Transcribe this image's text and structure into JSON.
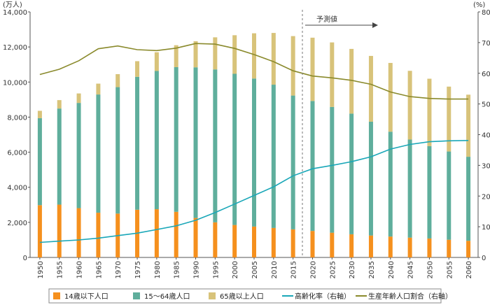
{
  "chart_data": {
    "type": "bar",
    "y_left_unit": "(万人)",
    "y_right_unit": "(%)",
    "y_left_ticks": [
      "0",
      "2,000",
      "4,000",
      "6,000",
      "8,000",
      "10,000",
      "12,000",
      "14,000"
    ],
    "y_right_ticks": [
      "0",
      "10",
      "20",
      "30",
      "40",
      "50",
      "60",
      "70",
      "80"
    ],
    "ylim_left": [
      0,
      14000
    ],
    "ylim_right": [
      0,
      80
    ],
    "annotation": "予測値",
    "categories": [
      "1950",
      "1955",
      "1960",
      "1965",
      "1970",
      "1975",
      "1980",
      "1985",
      "1990",
      "1995",
      "2000",
      "2005",
      "2010",
      "2015",
      "2020",
      "2025",
      "2030",
      "2035",
      "2040",
      "2045",
      "2050",
      "2055",
      "2060"
    ],
    "bar_series": [
      {
        "name": "14歳以下人口",
        "color": "#f5901e",
        "values": [
          2980,
          3010,
          2810,
          2550,
          2500,
          2720,
          2750,
          2600,
          2250,
          2000,
          1850,
          1760,
          1680,
          1600,
          1510,
          1410,
          1320,
          1250,
          1190,
          1130,
          1080,
          1010,
          950
        ]
      },
      {
        "name": "15～64歳人口",
        "color": "#5fae9c",
        "values": [
          4960,
          5480,
          6000,
          6740,
          7210,
          7580,
          7880,
          8250,
          8590,
          8720,
          8620,
          8440,
          8170,
          7630,
          7410,
          7170,
          6880,
          6490,
          5980,
          5590,
          5270,
          5030,
          4790
        ]
      },
      {
        "name": "65歳以上人口",
        "color": "#d8c37a",
        "values": [
          420,
          480,
          540,
          620,
          740,
          890,
          1070,
          1250,
          1490,
          1830,
          2200,
          2580,
          2950,
          3390,
          3610,
          3680,
          3690,
          3750,
          3920,
          3920,
          3840,
          3700,
          3540
        ]
      }
    ],
    "line_series": [
      {
        "name": "高齢化率（右軸）",
        "color": "#1aa7b8",
        "values": [
          4.9,
          5.3,
          5.7,
          6.3,
          7.1,
          7.9,
          9.1,
          10.3,
          12.1,
          14.6,
          17.4,
          20.2,
          23.0,
          26.6,
          28.9,
          30.0,
          31.2,
          32.8,
          35.3,
          36.8,
          37.7,
          38.0,
          38.1
        ]
      },
      {
        "name": "生産年齢人口割合（右軸）",
        "color": "#8a8a2c",
        "values": [
          59.6,
          61.3,
          64.1,
          68.0,
          68.9,
          67.7,
          67.4,
          68.2,
          69.7,
          69.5,
          68.1,
          66.1,
          63.8,
          60.8,
          59.1,
          58.5,
          57.7,
          56.4,
          53.9,
          52.4,
          51.8,
          51.6,
          51.6
        ]
      }
    ],
    "legend_position": "bottom",
    "grid": false
  }
}
